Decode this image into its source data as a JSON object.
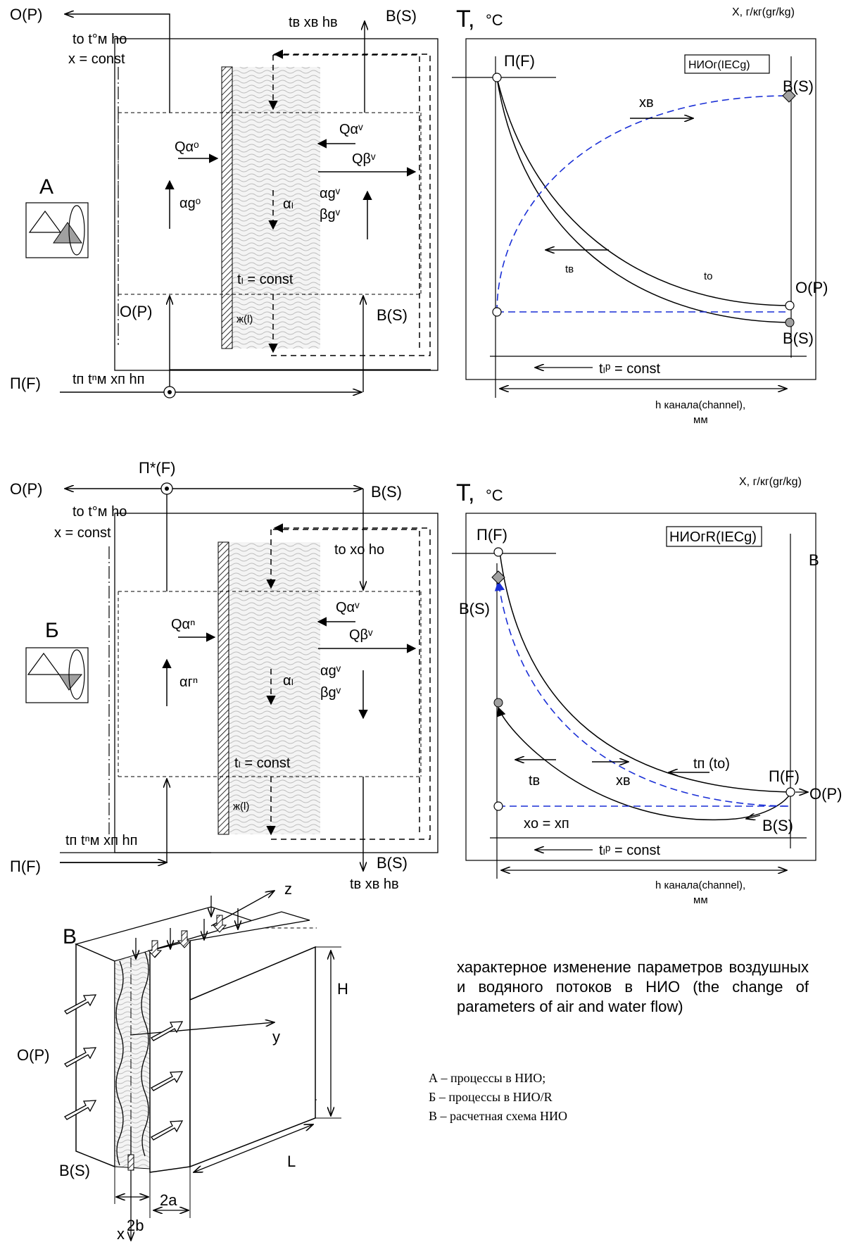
{
  "colors": {
    "dashed_blue": "#1a2fd6",
    "grey_marker": "#a0a0a0"
  },
  "icons": [
    "triangle-sine-icon-a",
    "triangle-sine-icon-b",
    "open-circle-marker-icon",
    "grey-circle-marker-icon",
    "grey-diamond-marker-icon",
    "crossed-circle-junction-icon"
  ],
  "panel_a": {
    "tag": "А",
    "top_left_port": "О(Р)",
    "top_right_port": "В(S)",
    "top_right_params": "tв xв hв",
    "left_params_1": "tо t°м hо",
    "left_params_2": "x = const",
    "q_alpha_o": "Qαᵒ",
    "alpha_go": "αgᵒ",
    "q_alpha_v": "Qαᵛ",
    "q_beta_v": "Qβᵛ",
    "alpha_l": "αₗ",
    "alpha_gv": "αgᵛ",
    "beta_gv": "βgᵛ",
    "tl_const": "tₗ = const",
    "water": "ж(l)",
    "bottom_left_port": "О(Р)",
    "bottom_right_port": "В(S)",
    "inlet_port": "П(F)",
    "inlet_params": "tп tⁿм xп hп"
  },
  "chart_a": {
    "y_title": "Т,",
    "y_unit": "°С",
    "x_right_label": "X, г/кг(gr/kg)",
    "mode_label": "НИОг(IECg)",
    "point_f": "П(F)",
    "point_s_top": "В(S)",
    "point_p": "О(Р)",
    "point_s_bottom": "В(S)",
    "curve_xv": "xв",
    "curve_tv": "tв",
    "curve_to": "tо",
    "bottom_label": "tₗᵖ = const",
    "axis_label": "h канала(channel),",
    "axis_unit": "мм"
  },
  "panel_b": {
    "top_port": "П*(F)",
    "tag": "Б",
    "top_left_port": "О(Р)",
    "top_right_port": "В(S)",
    "left_params_1": "tо t°м hо",
    "left_params_2": "x = const",
    "inner_params": "tо xо hо",
    "q_alpha_p": "Qαⁿ",
    "alpha_gp": "αгⁿ",
    "q_alpha_v": "Qαᵛ",
    "q_beta_v": "Qβᵛ",
    "alpha_l": "αₗ",
    "alpha_gv": "αgᵛ",
    "beta_gv": "βgᵛ",
    "tl_const": "tₗ = const",
    "water": "ж(l)",
    "bottom_params": "tп tⁿм xп hп",
    "bottom_left_port": "П(F)",
    "bottom_right_port": "В(S)",
    "bottom_right_params": "tв xв hв"
  },
  "chart_b": {
    "y_title": "Т,",
    "y_unit": "°С",
    "x_right_label": "X, г/кг(gr/kg)",
    "mode_label": "НИОгR(IECg)",
    "point_f_top": "П(F)",
    "point_s_left": "В(S)",
    "right_label": "В",
    "curve_tp": "tп (tо)",
    "point_f_right": "П(F)",
    "point_p_right": "О(Р)",
    "curve_tv": "tв",
    "curve_xv": "xв",
    "eq": "xо = xп",
    "point_s_bottom": "В(S)",
    "bottom_label": "tₗᵖ = const",
    "axis_label": "h канала(channel),",
    "axis_unit": "мм"
  },
  "panel_c": {
    "tag": "В",
    "axis_z": "z",
    "axis_y": "y",
    "axis_x": "x",
    "dim_h": "H",
    "dim_l": "L",
    "dim_2a": "2a",
    "dim_2b": "2b",
    "inlet": "О(Р)",
    "outlet": "В(S)"
  },
  "caption": "характерное изменение параметров воздушных и водяного потоков в НИО (the change of parameters of air and water flow)",
  "legend": [
    "А – процессы в НИО;",
    "Б – процессы в НИО/R",
    "В – расчетная схема НИО"
  ]
}
